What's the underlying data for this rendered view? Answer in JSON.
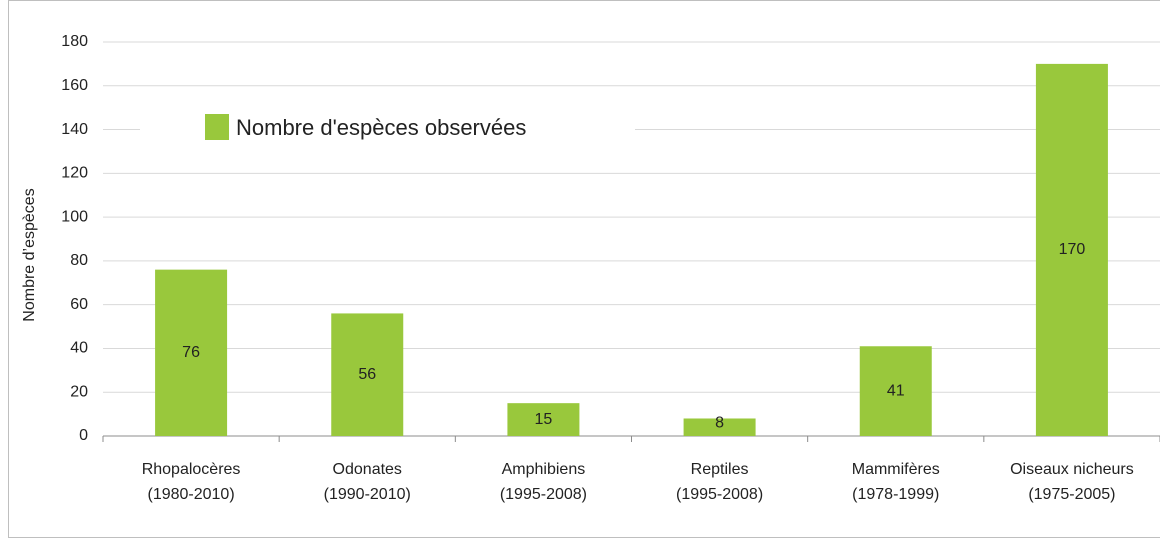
{
  "chart_data": {
    "type": "bar",
    "y_label": "Nombre d’espèces",
    "categories": [
      [
        "Rhopalocères",
        "(1980-2010)"
      ],
      [
        "Odonates",
        "(1990-2010)"
      ],
      [
        "Amphibiens",
        "(1995-2008)"
      ],
      [
        "Reptiles",
        "(1995-2008)"
      ],
      [
        "Mammifères",
        "(1978-1999)"
      ],
      [
        "Oiseaux nicheurs",
        "(1975-2005)"
      ]
    ],
    "series": [
      {
        "name": "Nombre d'espèces observées",
        "color": "#99c83c",
        "values": [
          76,
          56,
          15,
          8,
          41,
          170
        ]
      }
    ],
    "ylim": [
      0,
      180
    ],
    "yticks": [
      0,
      20,
      40,
      60,
      80,
      100,
      120,
      140,
      160,
      180
    ],
    "grid": true,
    "legend": "top-left"
  }
}
